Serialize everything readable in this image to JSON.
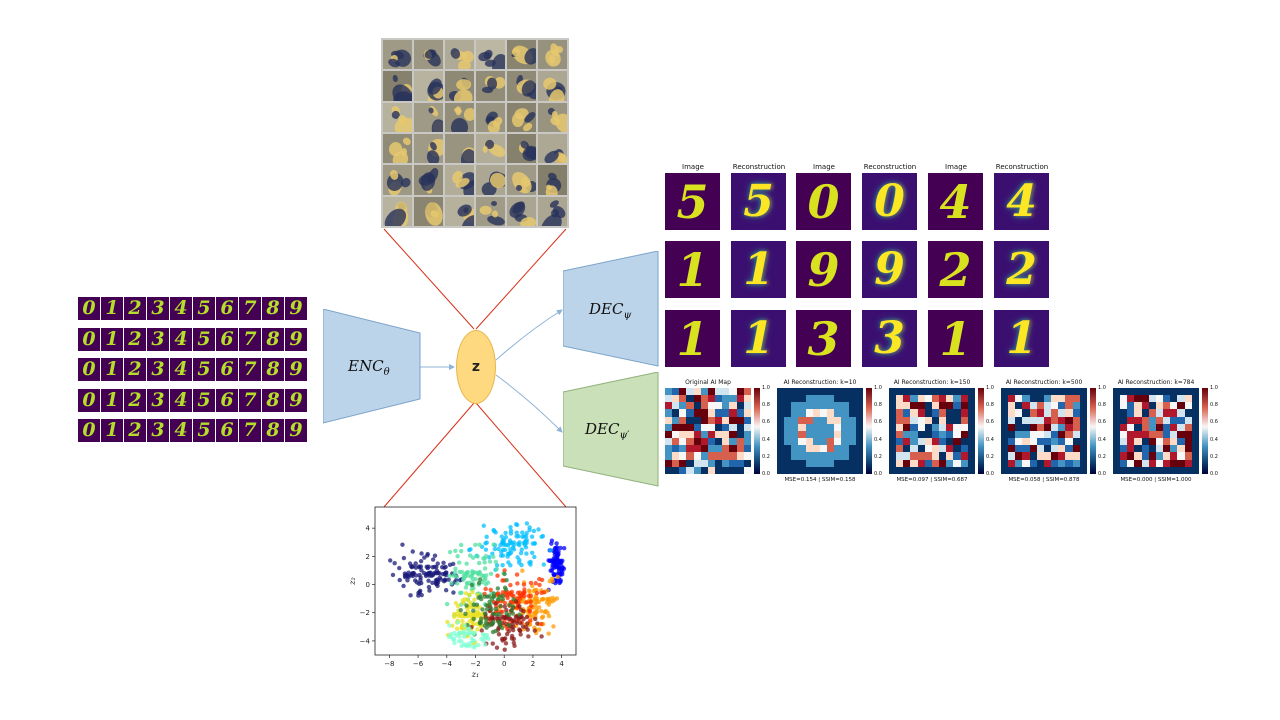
{
  "input_digits": {
    "rows": [
      [
        "0",
        "1",
        "2",
        "3",
        "4",
        "5",
        "6",
        "7",
        "8",
        "9"
      ],
      [
        "0",
        "1",
        "2",
        "3",
        "4",
        "5",
        "6",
        "7",
        "8",
        "9"
      ],
      [
        "0",
        "1",
        "2",
        "3",
        "4",
        "5",
        "6",
        "7",
        "8",
        "9"
      ],
      [
        "0",
        "1",
        "2",
        "3",
        "4",
        "5",
        "6",
        "7",
        "8",
        "9"
      ],
      [
        "0",
        "1",
        "2",
        "3",
        "4",
        "5",
        "6",
        "7",
        "8",
        "9"
      ]
    ]
  },
  "encoder": {
    "label": "ENC",
    "subscript": "θ",
    "color": "#bcd4ea"
  },
  "latent": {
    "label": "z",
    "color": "#ffd980"
  },
  "decoder_top": {
    "label": "DEC",
    "subscript": "ψ",
    "color": "#bcd4ea"
  },
  "decoder_bottom": {
    "label": "DEC",
    "subscript": "ψ′",
    "color": "#c9e0b8"
  },
  "reconstruction_grid": {
    "column_titles": [
      "Image",
      "Reconstruction",
      "Image",
      "Reconstruction",
      "Image",
      "Reconstruction"
    ],
    "rows": [
      [
        "5",
        "5",
        "0",
        "0",
        "4",
        "4"
      ],
      [
        "1",
        "1",
        "9",
        "9",
        "2",
        "2"
      ],
      [
        "1",
        "1",
        "3",
        "3",
        "1",
        "1"
      ]
    ]
  },
  "ai_maps": {
    "panels": [
      {
        "title": "Original AI Map",
        "metric": ""
      },
      {
        "title": "AI Reconstruction: k=10",
        "metric": "MSE=0.154 | SSIM=0.158"
      },
      {
        "title": "AI Reconstruction: k=150",
        "metric": "MSE=0.097 | SSIM=0.687"
      },
      {
        "title": "AI Reconstruction: k=500",
        "metric": "MSE=0.058 | SSIM=0.878"
      },
      {
        "title": "AI Reconstruction: k=784",
        "metric": "MSE=0.000 | SSIM=1.000"
      }
    ],
    "colorbar_ticks": [
      "1.0",
      "0.8",
      "0.6",
      "0.4",
      "0.2",
      "0.0"
    ]
  },
  "latent_scatter": {
    "xlabel": "z₁",
    "ylabel": "z₂",
    "x_ticks": [
      "−8",
      "−6",
      "−4",
      "−2",
      "0",
      "2",
      "4"
    ],
    "y_ticks": [
      "4",
      "2",
      "0",
      "−2",
      "−4"
    ]
  },
  "chart_data": {
    "type": "scatter",
    "xlabel": "z₁",
    "ylabel": "z₂",
    "xlim": [
      -9,
      5
    ],
    "ylim": [
      -5,
      5.5
    ],
    "grid": false,
    "clusters": [
      {
        "color": "#1a1a7a",
        "center": [
          -5.5,
          0.8
        ],
        "spread": [
          1.6,
          1.0
        ],
        "n": 120
      },
      {
        "color": "#0000ff",
        "center": [
          3.6,
          1.6
        ],
        "spread": [
          0.35,
          1.0
        ],
        "n": 90
      },
      {
        "color": "#00bfff",
        "center": [
          0.5,
          2.8
        ],
        "spread": [
          1.6,
          1.0
        ],
        "n": 100
      },
      {
        "color": "#50e0a0",
        "center": [
          -2.2,
          0.5
        ],
        "spread": [
          1.2,
          1.6
        ],
        "n": 90
      },
      {
        "color": "#e8e020",
        "center": [
          -2.3,
          -2.4
        ],
        "spread": [
          1.0,
          1.1
        ],
        "n": 90
      },
      {
        "color": "#ff9900",
        "center": [
          2.0,
          -1.5
        ],
        "spread": [
          1.3,
          1.3
        ],
        "n": 110
      },
      {
        "color": "#ff3300",
        "center": [
          0.6,
          -1.2
        ],
        "spread": [
          1.3,
          1.4
        ],
        "n": 90
      },
      {
        "color": "#8b1a1a",
        "center": [
          0.2,
          -2.8
        ],
        "spread": [
          1.4,
          1.0
        ],
        "n": 90
      },
      {
        "color": "#2e7d32",
        "center": [
          -0.8,
          -1.6
        ],
        "spread": [
          1.3,
          1.3
        ],
        "n": 70
      },
      {
        "color": "#7fffd4",
        "center": [
          -2.5,
          -3.8
        ],
        "spread": [
          1.0,
          0.6
        ],
        "n": 50
      }
    ]
  }
}
